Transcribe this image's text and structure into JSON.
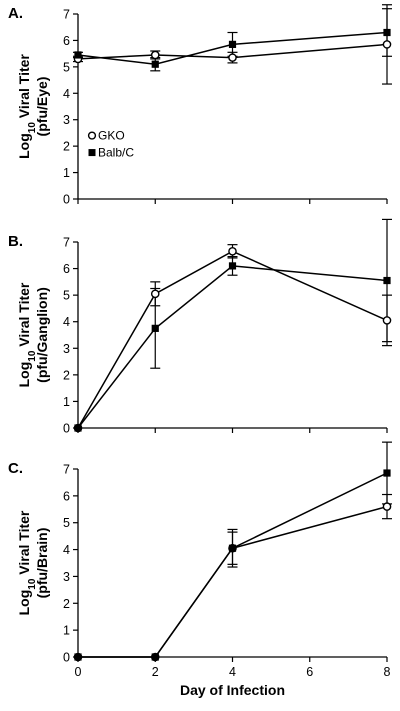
{
  "chart_data": [
    {
      "type": "line",
      "panel_label": "A.",
      "ylabel_line1": "Log",
      "ylabel_sub": "10",
      "ylabel_line1_rest": " Viral Titer",
      "ylabel_line2": "(pfu/Eye)",
      "ylim": [
        0,
        7
      ],
      "yticks": [
        "0",
        "1",
        "2",
        "3",
        "4",
        "5",
        "6",
        "7"
      ],
      "xlim": [
        0,
        8
      ],
      "x": [
        0,
        2,
        4,
        8
      ],
      "series": [
        {
          "name": "GKO",
          "marker": "open-circle",
          "values": [
            5.3,
            5.45,
            5.35,
            5.85
          ],
          "error": [
            0.1,
            0.15,
            0.2,
            1.5
          ]
        },
        {
          "name": "Balb/C",
          "marker": "filled-square",
          "values": [
            5.45,
            5.1,
            5.85,
            6.3
          ],
          "error": [
            0.1,
            0.25,
            0.45,
            0.9
          ]
        }
      ],
      "legend": {
        "placement": "middle-left",
        "entries": [
          "GKO",
          "Balb/C"
        ]
      }
    },
    {
      "type": "line",
      "panel_label": "B.",
      "ylabel_line1": "Log",
      "ylabel_sub": "10",
      "ylabel_line1_rest": " Viral Titer",
      "ylabel_line2": "(pfu/Ganglion)",
      "ylim": [
        0,
        7
      ],
      "yticks": [
        "0",
        "1",
        "2",
        "3",
        "4",
        "5",
        "6",
        "7"
      ],
      "xlim": [
        0,
        8
      ],
      "x": [
        0,
        2,
        4,
        8
      ],
      "series": [
        {
          "name": "GKO",
          "marker": "open-circle",
          "values": [
            0,
            5.05,
            6.65,
            4.05
          ],
          "error": [
            0,
            0.45,
            0.25,
            0.95
          ]
        },
        {
          "name": "Balb/C",
          "marker": "filled-square",
          "values": [
            0,
            3.75,
            6.1,
            5.55
          ],
          "error": [
            0,
            1.5,
            0.35,
            2.3
          ]
        }
      ]
    },
    {
      "type": "line",
      "panel_label": "C.",
      "ylabel_line1": "Log",
      "ylabel_sub": "10",
      "ylabel_line1_rest": " Viral Titer",
      "ylabel_line2": "(pfu/Brain)",
      "ylim": [
        0,
        7
      ],
      "yticks": [
        "0",
        "1",
        "2",
        "3",
        "4",
        "5",
        "6",
        "7"
      ],
      "xlim": [
        0,
        8
      ],
      "x": [
        0,
        2,
        4,
        8
      ],
      "xticks": [
        "0",
        "2",
        "4",
        "6",
        "8"
      ],
      "xlabel": "Day of Infection",
      "series": [
        {
          "name": "GKO",
          "marker": "open-circle",
          "values": [
            0,
            0,
            4.05,
            5.6
          ],
          "error": [
            0,
            0,
            0.7,
            0.45
          ]
        },
        {
          "name": "Balb/C",
          "marker": "filled-square",
          "values": [
            0,
            0,
            4.05,
            6.85
          ],
          "error": [
            0,
            0,
            0.6,
            1.15
          ]
        }
      ]
    }
  ]
}
